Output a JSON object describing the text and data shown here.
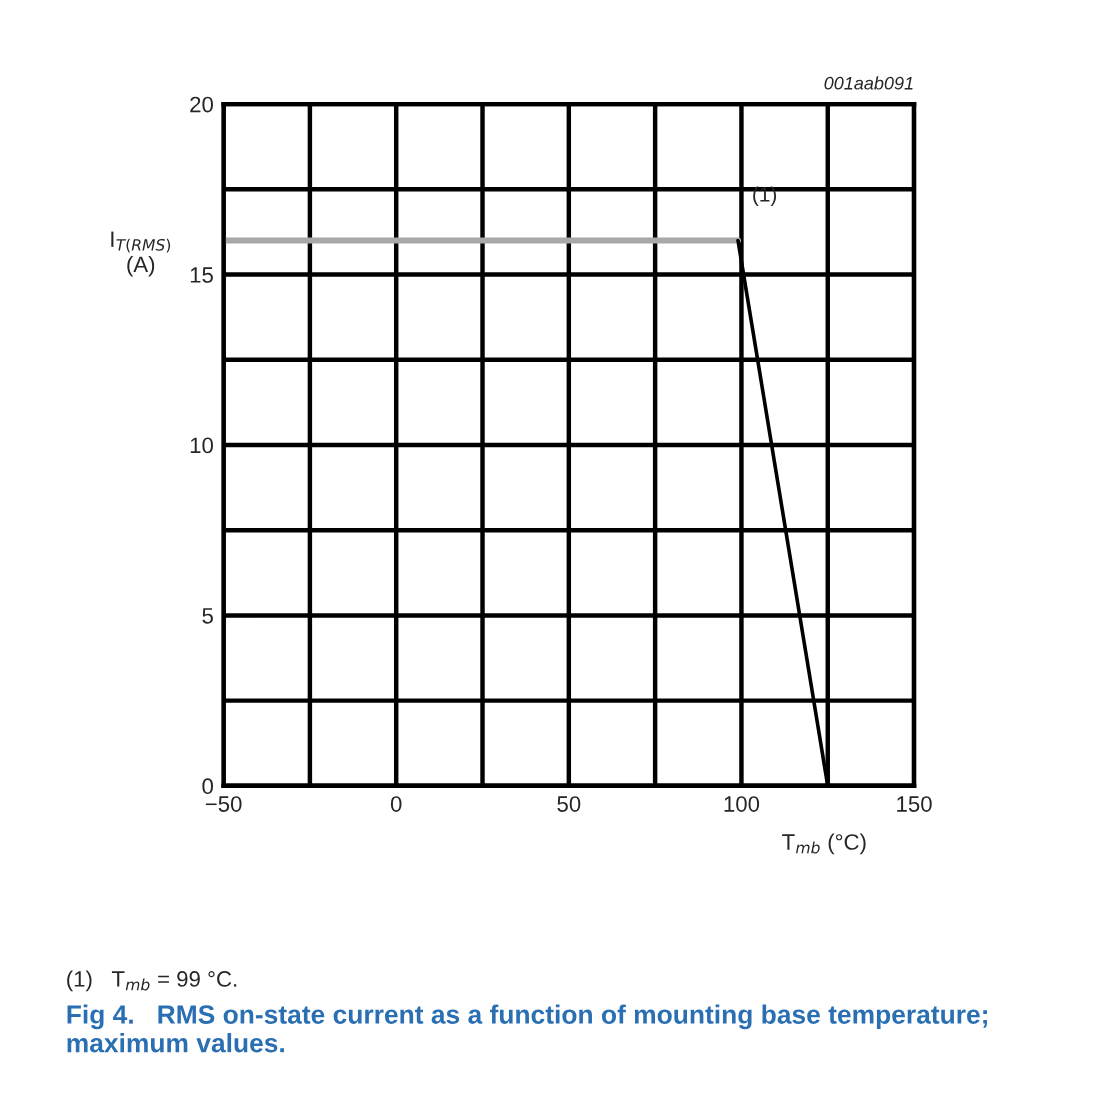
{
  "chart_data": {
    "type": "line",
    "title": "Fig 4.   RMS on-state current as a function of mounting base temperature; maximum values.",
    "xlabel": "T$_{mb}$ (°C)",
    "ylabel": "I$_{T(RMS)}$\n(A)",
    "series": [
      {
        "color": "#a8a8a8",
        "x": [
          -50,
          99
        ],
        "values": [
          16,
          16
        ]
      },
      {
        "color": "#000000",
        "x": [
          99,
          125
        ],
        "values": [
          16,
          0
        ]
      }
    ],
    "xlim": [
      -50,
      150
    ],
    "xticks": [
      -50,
      {
        "value": -25,
        "label": null
      },
      0,
      {
        "value": 25,
        "label": null
      },
      50,
      {
        "value": 75,
        "label": null
      },
      100,
      {
        "value": 125,
        "label": null
      },
      150
    ],
    "ylim": [
      0,
      20
    ],
    "yticks": [
      0,
      {
        "value": 2.5,
        "label": null
      },
      5,
      {
        "value": 7.5,
        "label": null
      },
      10,
      {
        "value": 12.5,
        "label": null
      },
      15,
      {
        "value": 17.5,
        "label": null
      },
      20
    ],
    "grid": true,
    "annotations": [
      "001aab091",
      {
        "text": "(1)",
        "x": 99,
        "y": 16
      },
      "(1)   T$_{mb}$ = 99 °C."
    ]
  }
}
